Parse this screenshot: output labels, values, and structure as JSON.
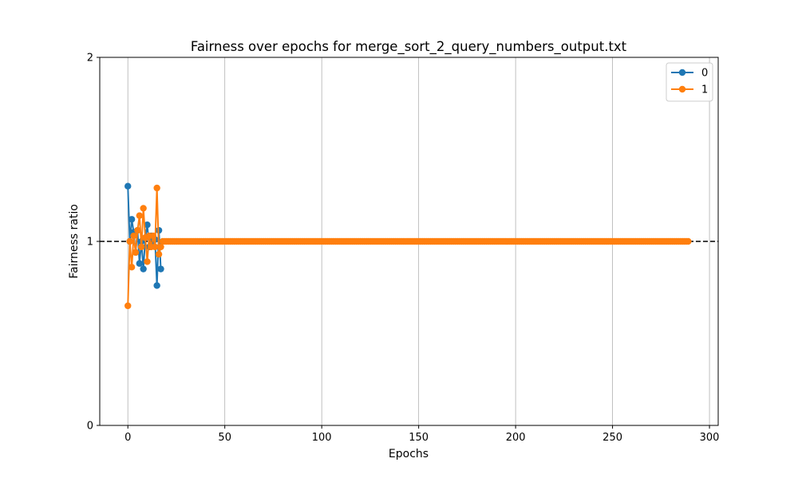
{
  "chart_data": {
    "type": "line",
    "title": "Fairness over epochs for merge_sort_2_query_numbers_output.txt",
    "xlabel": "Epochs",
    "ylabel": "Fairness ratio",
    "xlim": [
      -14.5,
      304.5
    ],
    "ylim": [
      0,
      2
    ],
    "x_ticks": [
      0,
      50,
      100,
      150,
      200,
      250,
      300
    ],
    "y_ticks": [
      0,
      1,
      2
    ],
    "grid": "vertical",
    "reference_line": {
      "y": 1,
      "style": "dashed",
      "color": "#000000"
    },
    "legend": {
      "position": "top-right"
    },
    "series": [
      {
        "name": "0",
        "color": "#1f77b4",
        "initial_values": [
          1.3,
          1.0,
          1.12,
          1.05,
          0.94,
          1.06,
          0.88,
          1.0,
          0.85,
          1.02,
          1.09,
          0.97,
          1.03,
          0.98,
          1.01,
          0.76,
          1.06,
          0.85
        ],
        "settled_value": 1.0,
        "last_epoch": 17
      },
      {
        "name": "1",
        "color": "#ff7f0e",
        "initial_values": [
          0.65,
          1.0,
          0.86,
          1.03,
          0.94,
          1.06,
          1.14,
          0.97,
          1.18,
          1.02,
          0.89,
          1.03,
          0.97,
          1.03,
          0.97,
          1.29,
          0.93,
          0.97
        ],
        "settled_value": 1.0,
        "last_epoch": 289
      }
    ]
  }
}
